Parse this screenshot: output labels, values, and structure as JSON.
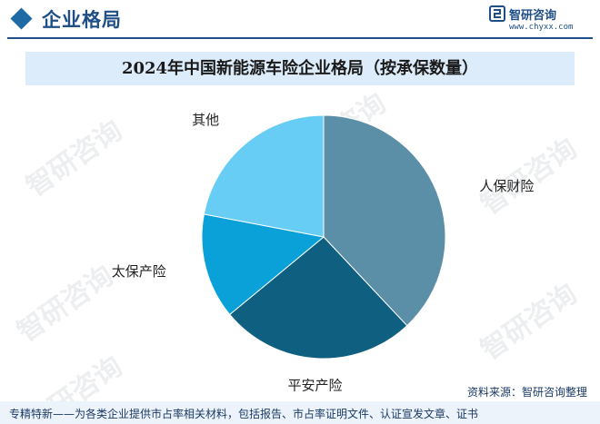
{
  "header": {
    "section_title": "企业格局",
    "brand_name": "智研咨询",
    "brand_url": "www.chyxx.com"
  },
  "colors": {
    "accent": "#1f4f86",
    "banner": "#dcecfa",
    "slice_renbao": "#5b8fa8",
    "slice_pingan": "#0f5f80",
    "slice_taibao": "#0aa0d8",
    "slice_other": "#67cdf5"
  },
  "chart_data": {
    "type": "pie",
    "title": "2024年中国新能源车险企业格局（按承保数量）",
    "slices": [
      {
        "label": "人保财险",
        "value": 38,
        "color": "#5b8fa8"
      },
      {
        "label": "平安产险",
        "value": 26,
        "color": "#0f5f80"
      },
      {
        "label": "太保产险",
        "value": 14,
        "color": "#0aa0d8"
      },
      {
        "label": "其他",
        "value": 22,
        "color": "#67cdf5"
      }
    ],
    "start_angle_deg": 0,
    "direction": "clockwise",
    "legend": "none"
  },
  "watermarks": [
    "智研咨询",
    "智研咨询",
    "智研咨询",
    "智研咨询",
    "智研咨询",
    "智研咨询"
  ],
  "footer": {
    "source": "资料来源：智研咨询整理",
    "tagline": "专精特新——为各类企业提供市占率相关材料，包括报告、市占率证明文件、认证宣发文章、证书"
  }
}
